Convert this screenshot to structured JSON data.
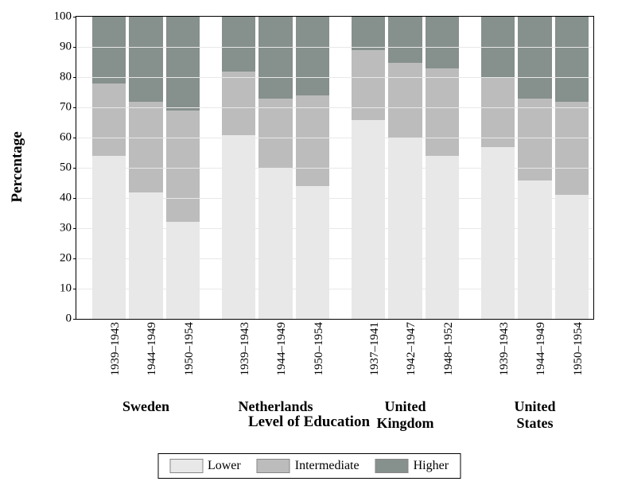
{
  "chart": {
    "type": "stacked-bar",
    "ylabel": "Percentage",
    "xlabel": "Level of Education",
    "ylim": [
      0,
      100
    ],
    "ytick_step": 10,
    "background_color": "#ffffff",
    "grid_color": "#e8e8e8",
    "axis_fontsize": 15,
    "label_fontsize": 19,
    "group_fontsize": 18,
    "colors": {
      "lower": "#e8e8e8",
      "intermediate": "#bcbcbc",
      "higher": "#86908c"
    },
    "legend": [
      {
        "key": "lower",
        "label": "Lower"
      },
      {
        "key": "intermediate",
        "label": "Intermediate"
      },
      {
        "key": "higher",
        "label": "Higher"
      }
    ],
    "groups": [
      {
        "name": "Sweden",
        "bars": [
          {
            "label": "1939–1943",
            "lower": 54,
            "intermediate": 24,
            "higher": 22
          },
          {
            "label": "1944–1949",
            "lower": 42,
            "intermediate": 30,
            "higher": 28
          },
          {
            "label": "1950–1954",
            "lower": 32,
            "intermediate": 37,
            "higher": 31
          }
        ]
      },
      {
        "name": "Netherlands",
        "bars": [
          {
            "label": "1939–1943",
            "lower": 61,
            "intermediate": 21,
            "higher": 18
          },
          {
            "label": "1944–1949",
            "lower": 50,
            "intermediate": 23,
            "higher": 27
          },
          {
            "label": "1950–1954",
            "lower": 44,
            "intermediate": 30,
            "higher": 26
          }
        ]
      },
      {
        "name": "United Kingdom",
        "bars": [
          {
            "label": "1937–1941",
            "lower": 66,
            "intermediate": 23,
            "higher": 11
          },
          {
            "label": "1942–1947",
            "lower": 60,
            "intermediate": 25,
            "higher": 15
          },
          {
            "label": "1948–1952",
            "lower": 54,
            "intermediate": 29,
            "higher": 17
          }
        ]
      },
      {
        "name": "United States",
        "bars": [
          {
            "label": "1939–1943",
            "lower": 57,
            "intermediate": 23,
            "higher": 20
          },
          {
            "label": "1944–1949",
            "lower": 46,
            "intermediate": 27,
            "higher": 27
          },
          {
            "label": "1950–1954",
            "lower": 41,
            "intermediate": 31,
            "higher": 28
          }
        ]
      }
    ]
  }
}
